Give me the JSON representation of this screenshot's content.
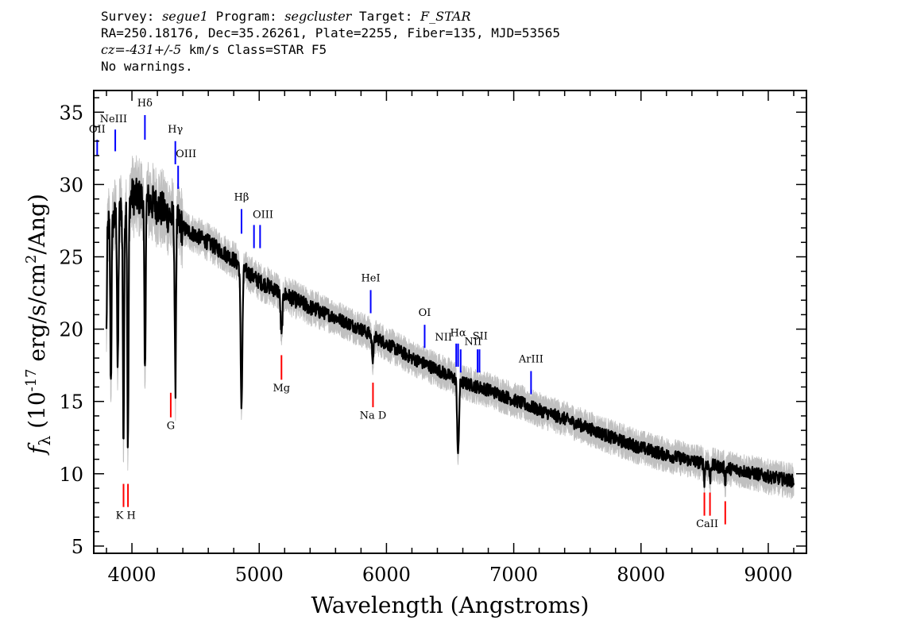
{
  "header": {
    "survey_label": "Survey: ",
    "survey": "segue1",
    "program_label": " Program: ",
    "program": "segcluster",
    "target_label": " Target: ",
    "target": "F_STAR",
    "line2": "RA=250.18176, Dec=35.26261, Plate=2255, Fiber=135, MJD=53565",
    "cz_label": "cz=",
    "cz": "-431+/-5",
    "cz_rest": " km/s Class=STAR F5",
    "line4": "No warnings."
  },
  "chart_data": {
    "type": "line",
    "xlabel": "Wavelength (Angstroms)",
    "ylabel": "f_λ (10^-17 erg/s/cm^2/Ang)",
    "xlim": [
      3700,
      9300
    ],
    "ylim": [
      4.5,
      36.5
    ],
    "x_ticks": [
      4000,
      5000,
      6000,
      7000,
      8000,
      9000
    ],
    "y_ticks": [
      5,
      10,
      15,
      20,
      25,
      30,
      35
    ],
    "grid": false,
    "colors": {
      "spectrum": "#000000",
      "error": "#c0c0c0",
      "emission": "#0000ff",
      "absorption": "#ff0000"
    },
    "series": [
      {
        "type": "continuum",
        "x": [
          3800,
          3900,
          4000,
          4100,
          4200,
          4300,
          4400,
          4500,
          4600,
          4700,
          4800,
          4900,
          5000,
          5200,
          5400,
          5600,
          5800,
          6000,
          6200,
          6400,
          6600,
          6800,
          7000,
          7200,
          7400,
          7600,
          7800,
          8000,
          8200,
          8400,
          8600,
          8800,
          9000,
          9200
        ],
        "y": [
          27.0,
          28.0,
          29.2,
          29.0,
          28.5,
          27.8,
          27.0,
          26.5,
          26.0,
          25.4,
          24.8,
          24.0,
          23.3,
          22.4,
          21.5,
          20.8,
          20.0,
          19.0,
          18.0,
          17.2,
          16.3,
          15.8,
          15.1,
          14.4,
          13.8,
          13.1,
          12.4,
          11.8,
          11.3,
          10.9,
          10.5,
          10.2,
          9.8,
          9.5
        ]
      },
      {
        "type": "absorption",
        "x": [
          3750,
          3771,
          3798,
          3835,
          3889,
          3934,
          3969,
          4102,
          4341,
          4861,
          5175,
          5893,
          6563,
          8498,
          8542,
          8662
        ],
        "depth": [
          5.0,
          6.0,
          8.0,
          11.0,
          11.0,
          16.0,
          17.0,
          12.5,
          11.5,
          9.5,
          3.0,
          1.5,
          5.2,
          1.2,
          1.2,
          1.0
        ]
      }
    ],
    "emission_lines": [
      {
        "label": "OII",
        "x": 3727,
        "y_top": 33.1,
        "y_bottom": 32.0
      },
      {
        "label": "NeIII",
        "x": 3869,
        "y_top": 33.8,
        "y_bottom": 32.3
      },
      {
        "label": "Hδ",
        "x": 4102,
        "y_top": 34.8,
        "y_bottom": 33.1
      },
      {
        "label": "Hγ",
        "x": 4341,
        "y_top": 33.0,
        "y_bottom": 31.4
      },
      {
        "label": "OIII",
        "x": 4363,
        "y_top": 31.3,
        "y_bottom": 29.7
      },
      {
        "label": "Hβ",
        "x": 4861,
        "y_top": 28.3,
        "y_bottom": 26.6
      },
      {
        "label": "OIII",
        "x": 4959,
        "y_top": 27.2,
        "y_bottom": 25.6
      },
      {
        "label": "OIII",
        "x": 5007,
        "y_top": 27.2,
        "y_bottom": 25.6
      },
      {
        "label": "HeI",
        "x": 5876,
        "y_top": 22.7,
        "y_bottom": 21.1
      },
      {
        "label": "OI",
        "x": 6300,
        "y_top": 20.3,
        "y_bottom": 18.7
      },
      {
        "label": "NII",
        "x": 6548,
        "y_top": 19.0,
        "y_bottom": 17.4
      },
      {
        "label": "Hα",
        "x": 6563,
        "y_top": 19.0,
        "y_bottom": 17.4
      },
      {
        "label": "NII",
        "x": 6583,
        "y_top": 18.6,
        "y_bottom": 17.0
      },
      {
        "label": "SII",
        "x": 6716,
        "y_top": 18.6,
        "y_bottom": 17.0
      },
      {
        "label": "SII",
        "x": 6731,
        "y_top": 18.6,
        "y_bottom": 17.0
      },
      {
        "label": "ArIII",
        "x": 7136,
        "y_top": 17.1,
        "y_bottom": 15.5
      }
    ],
    "emission_labels": [
      {
        "text": "OII",
        "x": 3727,
        "y": 33.6
      },
      {
        "text": "NeIII",
        "x": 3855,
        "y": 34.3
      },
      {
        "text": "Hδ",
        "x": 4102,
        "y": 35.4
      },
      {
        "text": "Hγ",
        "x": 4341,
        "y": 33.6
      },
      {
        "text": "OIII",
        "x": 4425,
        "y": 31.9
      },
      {
        "text": "Hβ",
        "x": 4861,
        "y": 28.9
      },
      {
        "text": "OIII",
        "x": 5030,
        "y": 27.7
      },
      {
        "text": "HeI",
        "x": 5876,
        "y": 23.3
      },
      {
        "text": "OI",
        "x": 6300,
        "y": 20.9
      },
      {
        "text": "NII",
        "x": 6448,
        "y": 19.2
      },
      {
        "text": "Hα",
        "x": 6563,
        "y": 19.5
      },
      {
        "text": "NII",
        "x": 6680,
        "y": 18.9
      },
      {
        "text": "SII",
        "x": 6736,
        "y": 19.3
      },
      {
        "text": "ArIII",
        "x": 7136,
        "y": 17.7
      }
    ],
    "absorption_lines": [
      {
        "label": "K",
        "x": 3934,
        "y_top": 9.3,
        "y_bottom": 7.7
      },
      {
        "label": "H",
        "x": 3969,
        "y_top": 9.3,
        "y_bottom": 7.7
      },
      {
        "label": "G",
        "x": 4305,
        "y_top": 15.6,
        "y_bottom": 13.9
      },
      {
        "label": "Mg",
        "x": 5175,
        "y_top": 18.2,
        "y_bottom": 16.5
      },
      {
        "label": "Na D",
        "x": 5894,
        "y_top": 16.3,
        "y_bottom": 14.6
      },
      {
        "label": "CaII",
        "x": 8498,
        "y_top": 8.7,
        "y_bottom": 7.1
      },
      {
        "label": "CaII",
        "x": 8542,
        "y_top": 8.7,
        "y_bottom": 7.1
      },
      {
        "label": "CaII",
        "x": 8662,
        "y_top": 8.1,
        "y_bottom": 6.5
      }
    ],
    "absorption_labels": [
      {
        "text": "K H",
        "x": 3951,
        "y": 6.9
      },
      {
        "text": "G",
        "x": 4305,
        "y": 13.1
      },
      {
        "text": "Mg",
        "x": 5175,
        "y": 15.7
      },
      {
        "text": "Na D",
        "x": 5894,
        "y": 13.8
      },
      {
        "text": "CaII",
        "x": 8520,
        "y": 6.3
      }
    ]
  }
}
